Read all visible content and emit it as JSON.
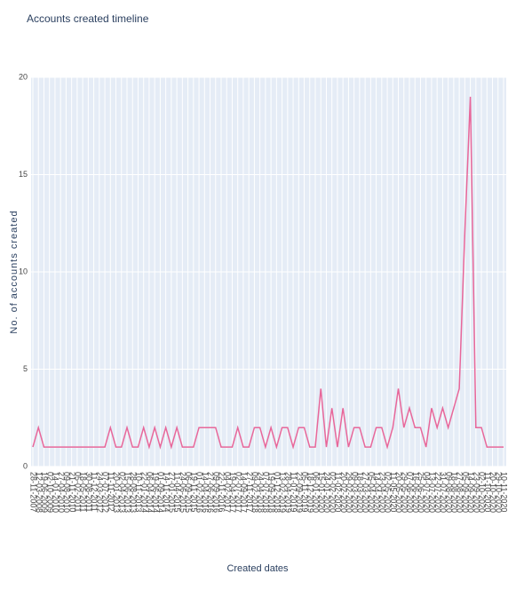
{
  "chart_data": {
    "type": "line",
    "title": "Accounts created timeline",
    "x_label": "Created dates",
    "y_label": "No. of accounts created",
    "categories": [
      "28-11-2007",
      "12-03-2008",
      "19-06-2009",
      "02-10-2009",
      "14-01-2010",
      "27-04-2010",
      "09-08-2010",
      "21-11-2010",
      "05-02-2011",
      "18-05-2011",
      "30-08-2011",
      "11-12-2011",
      "24-03-2012",
      "07-07-2012",
      "11-11-2012",
      "20-01-2013",
      "02-04-2013",
      "15-06-2013",
      "28-08-2013",
      "10-11-2013",
      "22-01-2014",
      "06-04-2014",
      "19-06-2014",
      "01-09-2014",
      "14-11-2014",
      "27-01-2015",
      "11-04-2015",
      "24-06-2015",
      "06-09-2015",
      "19-11-2015",
      "01-02-2016",
      "14-04-2016",
      "27-06-2016",
      "09-09-2016",
      "22-11-2016",
      "04-02-2017",
      "19-04-2017",
      "02-07-2017",
      "14-09-2017",
      "27-11-2017",
      "09-02-2018",
      "24-04-2018",
      "07-07-2018",
      "19-09-2018",
      "01-12-2018",
      "13-02-2019",
      "28-04-2019",
      "11-07-2019",
      "23-09-2019",
      "05-11-2019",
      "18-12-2019",
      "06-01-2020",
      "15-01-2020",
      "24-01-2020",
      "02-02-2020",
      "11-02-2020",
      "20-02-2020",
      "29-02-2020",
      "09-03-2020",
      "18-03-2020",
      "27-03-2020",
      "05-04-2020",
      "14-04-2020",
      "23-04-2020",
      "02-05-2020",
      "11-05-2020",
      "20-05-2020",
      "29-05-2020",
      "07-06-2020",
      "16-06-2020",
      "25-06-2020",
      "04-07-2020",
      "13-07-2020",
      "22-07-2020",
      "31-07-2020",
      "09-08-2020",
      "18-08-2020",
      "27-08-2020",
      "05-09-2020",
      "14-09-2020",
      "23-09-2020",
      "02-10-2020",
      "11-10-2020",
      "20-10-2020",
      "29-10-2020",
      "10-11-2020"
    ],
    "values": [
      1,
      2,
      1,
      1,
      1,
      1,
      1,
      1,
      1,
      1,
      1,
      1,
      1,
      1,
      2,
      1,
      1,
      2,
      1,
      1,
      2,
      1,
      2,
      1,
      2,
      1,
      2,
      1,
      1,
      1,
      2,
      2,
      2,
      2,
      1,
      1,
      1,
      2,
      1,
      1,
      2,
      2,
      1,
      2,
      1,
      2,
      2,
      1,
      2,
      2,
      1,
      1,
      4,
      1,
      3,
      1,
      3,
      1,
      2,
      2,
      1,
      1,
      2,
      2,
      1,
      2,
      4,
      2,
      3,
      2,
      2,
      1,
      3,
      2,
      3,
      2,
      3,
      4,
      12,
      19,
      2,
      2,
      1,
      1,
      1,
      1
    ],
    "color": "#e8679a",
    "ylim": [
      0,
      20
    ],
    "yticks": [
      0,
      5,
      10,
      15,
      20
    ],
    "grid": true
  }
}
